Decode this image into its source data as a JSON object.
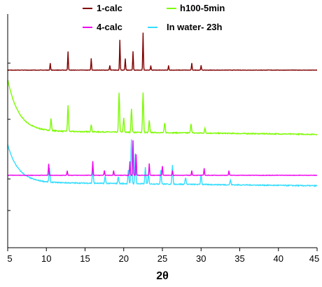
{
  "chart_data": {
    "type": "line",
    "title": "",
    "xlabel": "2θ",
    "ylabel": "",
    "xlim": [
      5,
      45
    ],
    "x_ticks": [
      "5",
      "10",
      "15",
      "20",
      "25",
      "30",
      "35",
      "40",
      "45"
    ],
    "y_ticks_labeled": false,
    "grid": false,
    "legend_position": "top",
    "series": [
      {
        "name": "1-calc",
        "color": "#800000",
        "baseline": 0.76,
        "peaks": [
          [
            10.5,
            0.03
          ],
          [
            12.8,
            0.08
          ],
          [
            15.8,
            0.05
          ],
          [
            18.2,
            0.02
          ],
          [
            19.5,
            0.13
          ],
          [
            20.2,
            0.05
          ],
          [
            21.2,
            0.08
          ],
          [
            22.5,
            0.16
          ],
          [
            23.5,
            0.02
          ],
          [
            25.8,
            0.02
          ],
          [
            28.8,
            0.03
          ],
          [
            30.0,
            0.02
          ]
        ]
      },
      {
        "name": "h100-5min",
        "color": "#7CFC00",
        "baseline": 0.5,
        "peaks": [
          [
            10.6,
            0.05
          ],
          [
            12.8,
            0.11
          ],
          [
            15.8,
            0.03
          ],
          [
            19.4,
            0.17
          ],
          [
            20.0,
            0.06
          ],
          [
            21.0,
            0.1
          ],
          [
            22.5,
            0.17
          ],
          [
            23.3,
            0.05
          ],
          [
            25.3,
            0.04
          ],
          [
            28.7,
            0.04
          ],
          [
            30.5,
            0.02
          ]
        ]
      },
      {
        "name": "4-calc",
        "color": "#EE00EE",
        "baseline": 0.31,
        "peaks": [
          [
            10.3,
            0.05
          ],
          [
            12.7,
            0.02
          ],
          [
            16.0,
            0.06
          ],
          [
            17.5,
            0.02
          ],
          [
            18.7,
            0.02
          ],
          [
            20.8,
            0.06
          ],
          [
            21.2,
            0.15
          ],
          [
            21.6,
            0.09
          ],
          [
            23.3,
            0.05
          ],
          [
            25.0,
            0.04
          ],
          [
            26.3,
            0.02
          ],
          [
            28.8,
            0.02
          ],
          [
            30.4,
            0.03
          ],
          [
            33.6,
            0.02
          ]
        ]
      },
      {
        "name": "In water- 23h",
        "color": "#33DDFF",
        "baseline": 0.28,
        "peaks": [
          [
            10.4,
            0.06
          ],
          [
            16.0,
            0.06
          ],
          [
            17.6,
            0.03
          ],
          [
            19.3,
            0.03
          ],
          [
            20.6,
            0.06
          ],
          [
            21.0,
            0.19
          ],
          [
            21.5,
            0.13
          ],
          [
            22.8,
            0.07
          ],
          [
            23.2,
            0.04
          ],
          [
            24.8,
            0.06
          ],
          [
            26.3,
            0.08
          ],
          [
            28.0,
            0.03
          ],
          [
            30.0,
            0.04
          ],
          [
            33.8,
            0.02
          ]
        ]
      }
    ]
  }
}
